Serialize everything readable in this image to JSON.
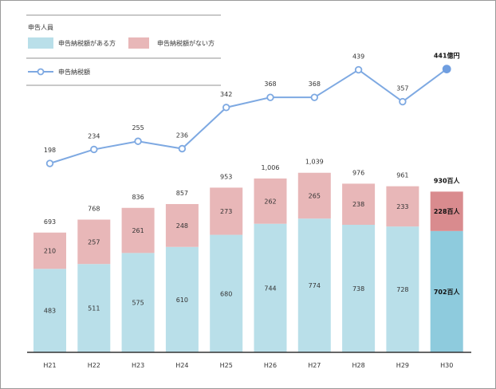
{
  "legend": {
    "group_title": "申告人員",
    "items": [
      {
        "label": "申告納税額がある方",
        "color": "#b9dfe9"
      },
      {
        "label": "申告納税額がない方",
        "color": "#e8b7b8"
      },
      {
        "label": "申告納税額",
        "color": "#7ea9e2"
      }
    ]
  },
  "colors": {
    "with_tax": "#b9dfe9",
    "without_tax": "#e8b7b8",
    "with_tax_highlight": "#8ecbdd",
    "without_tax_highlight": "#d98b8e",
    "line": "#7ea9e2",
    "last_point": "#6f9ee0"
  },
  "chart_data": {
    "type": "bar",
    "stacked": true,
    "categories": [
      "H21",
      "H22",
      "H23",
      "H24",
      "H25",
      "H26",
      "H27",
      "H28",
      "H29",
      "H30"
    ],
    "series": [
      {
        "name": "申告納税額がある方",
        "values": [
          483,
          511,
          575,
          610,
          680,
          744,
          774,
          738,
          728,
          702
        ]
      },
      {
        "name": "申告納税額がない方",
        "values": [
          210,
          257,
          261,
          248,
          273,
          262,
          265,
          238,
          233,
          228
        ]
      }
    ],
    "totals": [
      693,
      768,
      836,
      857,
      953,
      1006,
      1039,
      976,
      961,
      930
    ],
    "bar_labels": {
      "with_tax": [
        "483",
        "511",
        "575",
        "610",
        "680",
        "744",
        "774",
        "738",
        "728",
        "702百人"
      ],
      "without_tax": [
        "210",
        "257",
        "261",
        "248",
        "273",
        "262",
        "265",
        "238",
        "233",
        "228百人"
      ],
      "totals": [
        "693",
        "768",
        "836",
        "857",
        "953",
        "1,006",
        "1,039",
        "976",
        "961",
        "930百人"
      ]
    },
    "line": {
      "name": "申告納税額",
      "values": [
        198,
        234,
        255,
        236,
        342,
        368,
        368,
        439,
        357,
        441
      ],
      "labels": [
        "198",
        "234",
        "255",
        "236",
        "342",
        "368",
        "368",
        "439",
        "357",
        "441億円"
      ]
    },
    "highlight_index": 9,
    "grid": false
  }
}
